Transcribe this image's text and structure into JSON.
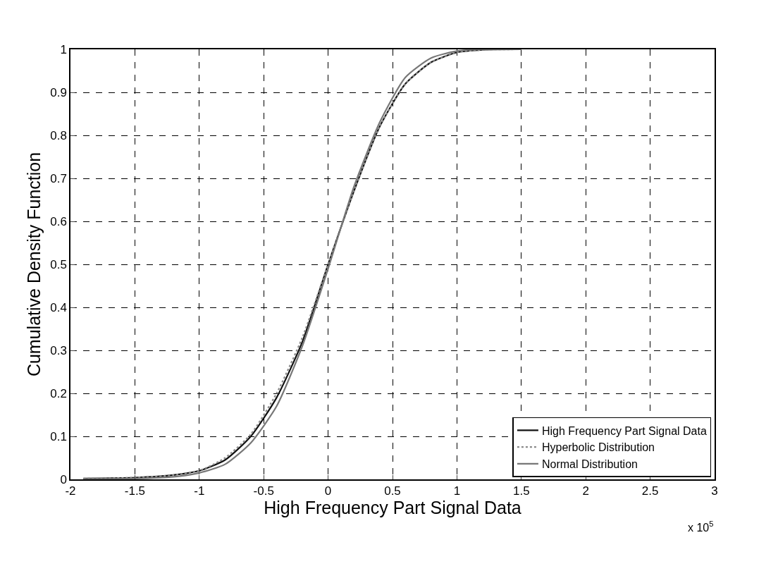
{
  "chart_data": {
    "type": "line",
    "xlabel": "High Frequency Part Signal Data",
    "ylabel": "Cumulative Density Function",
    "annotations": [
      "x 10$^{5}$"
    ],
    "x": [
      -1.9,
      -1.5,
      -1.2,
      -1,
      -0.8,
      -0.6,
      -0.4,
      -0.2,
      0,
      0.2,
      0.4,
      0.6,
      0.8,
      1.0,
      1.2,
      1.5
    ],
    "series": [
      {
        "name": "High Frequency Part Signal Data",
        "color": "#111111",
        "line_style": "solid",
        "values": [
          0.002,
          0.004,
          0.01,
          0.02,
          0.045,
          0.1,
          0.19,
          0.32,
          0.5,
          0.67,
          0.82,
          0.92,
          0.97,
          0.993,
          0.999,
          1.0
        ]
      },
      {
        "name": "Hyperbolic Distribution",
        "color": "#8a8a8a",
        "line_style": "dotted",
        "values": [
          0.002,
          0.004,
          0.01,
          0.02,
          0.05,
          0.105,
          0.2,
          0.33,
          0.5,
          0.67,
          0.82,
          0.92,
          0.97,
          0.993,
          0.999,
          1.0
        ]
      },
      {
        "name": "Normal Distribution",
        "color": "#777777",
        "line_style": "solid",
        "values": [
          0.001,
          0.002,
          0.006,
          0.015,
          0.035,
          0.085,
          0.17,
          0.31,
          0.49,
          0.68,
          0.83,
          0.935,
          0.98,
          0.996,
          1.0,
          1.0
        ]
      }
    ],
    "xlim": [
      -2,
      3
    ],
    "xticks": [
      -2,
      -1.5,
      -1,
      -0.5,
      0,
      0.5,
      1,
      1.5,
      2,
      2.5,
      3
    ],
    "ylim": [
      0,
      1
    ],
    "yticks": [
      0,
      0.1,
      0.2,
      0.3,
      0.4,
      0.5,
      0.6,
      0.7,
      0.8,
      0.9,
      1
    ],
    "grid": true,
    "legend": "bottom right",
    "marker": "none"
  }
}
